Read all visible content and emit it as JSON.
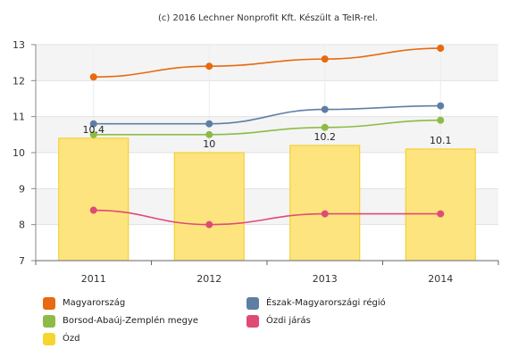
{
  "chart_data": {
    "type": "bar+line",
    "title": "(c) 2016 Lechner Nonprofit Kft. Készült a TeIR-rel.",
    "categories": [
      "2011",
      "2012",
      "2013",
      "2014"
    ],
    "ylim": [
      7,
      13
    ],
    "yticks": [
      7,
      8,
      9,
      10,
      11,
      12,
      13
    ],
    "grid": true,
    "legend_position": "bottom",
    "bar_series": {
      "name": "Ózd",
      "values": [
        10.4,
        10,
        10.2,
        10.1
      ],
      "data_labels": [
        "10.4",
        "10",
        "10.2",
        "10.1"
      ],
      "color": "#fde47f"
    },
    "series": [
      {
        "name": "Magyarország",
        "values": [
          12.1,
          12.4,
          12.6,
          12.9
        ],
        "color": "#e8690f"
      },
      {
        "name": "Észak-Magyarországi régió",
        "values": [
          10.8,
          10.8,
          11.2,
          11.3
        ],
        "color": "#5f7ea3"
      },
      {
        "name": "Borsod-Abaúj-Zemplén megye",
        "values": [
          10.5,
          10.5,
          10.7,
          10.9
        ],
        "color": "#8cbc45"
      },
      {
        "name": "Ózdi járás",
        "values": [
          8.4,
          8.0,
          8.3,
          8.3
        ],
        "color": "#de4b74"
      }
    ],
    "legend": [
      {
        "name": "Magyarország",
        "color": "#e8690f"
      },
      {
        "name": "Észak-Magyarországi régió",
        "color": "#5f7ea3"
      },
      {
        "name": "Borsod-Abaúj-Zemplén megye",
        "color": "#8cbc45"
      },
      {
        "name": "Ózdi járás",
        "color": "#de4b74"
      },
      {
        "name": "Ózd",
        "color": "#f7d52c"
      }
    ]
  }
}
